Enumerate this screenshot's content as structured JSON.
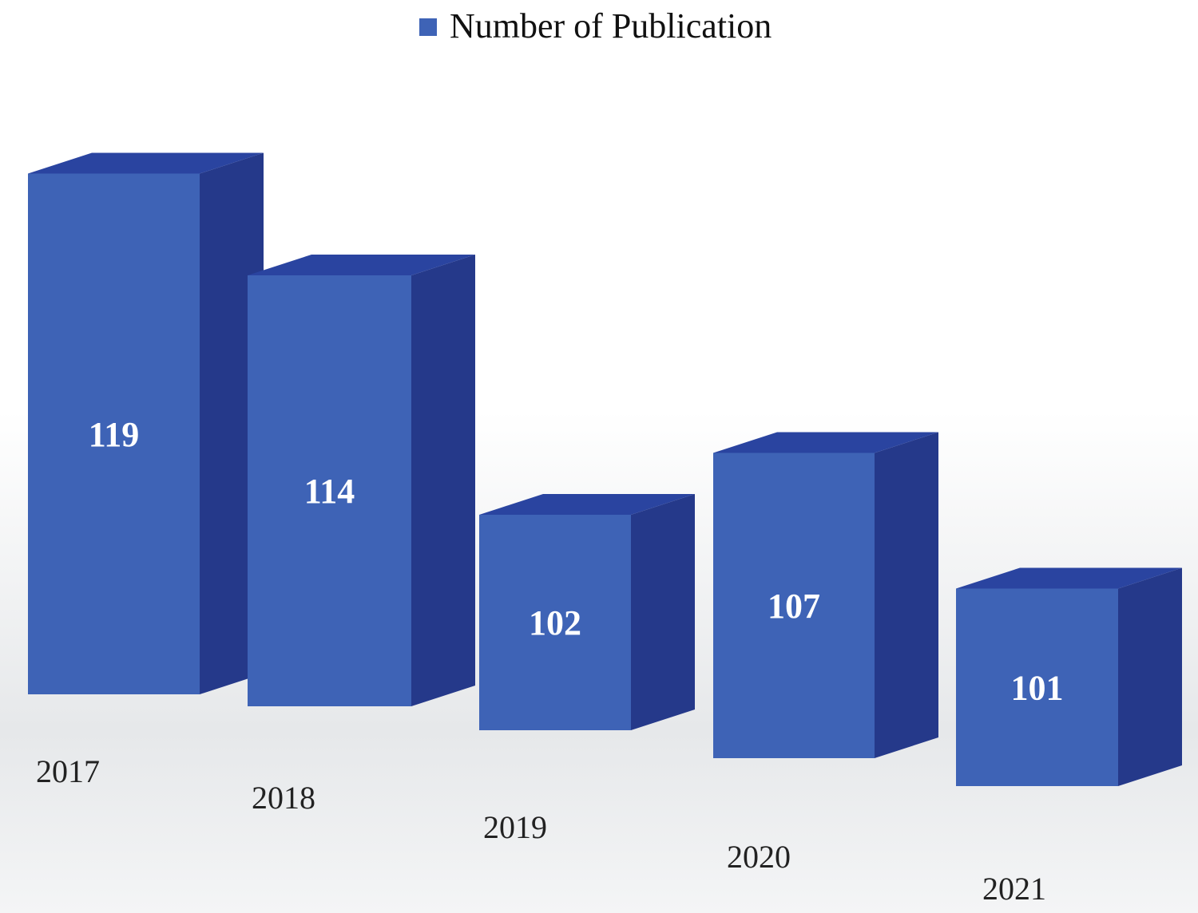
{
  "chart_data": {
    "type": "bar3d",
    "categories": [
      "2017",
      "2018",
      "2019",
      "2020",
      "2021"
    ],
    "series": [
      {
        "name": "Number of Publication",
        "color": "#3e63b6",
        "values": [
          119,
          114,
          102,
          107,
          101
        ]
      }
    ],
    "ylim": [
      90,
      120
    ],
    "legend": "top"
  }
}
